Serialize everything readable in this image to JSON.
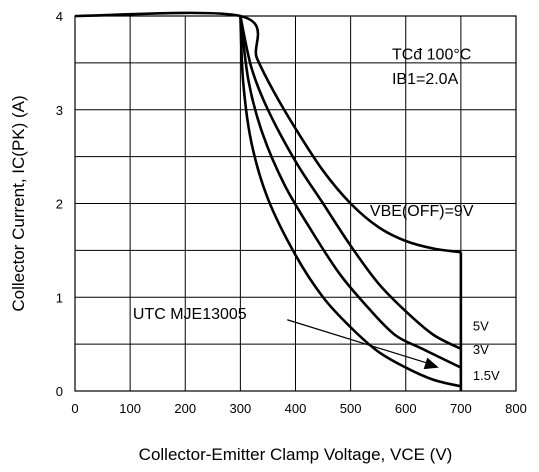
{
  "chart_data": {
    "type": "line",
    "title": "",
    "xlabel": "Collector-Emitter Clamp Voltage, VCE (V)",
    "ylabel": "Collector Current, IC(PK) (A)",
    "xlim": [
      0,
      800
    ],
    "ylim": [
      0,
      4
    ],
    "x_ticks": [
      0,
      100,
      200,
      300,
      400,
      500,
      600,
      700,
      800
    ],
    "y_ticks": [
      0,
      1,
      2,
      3,
      4
    ],
    "grid": true,
    "conditions": {
      "tc": "TCđ 100°C",
      "ib1": "IB1=2.0A"
    },
    "part_label": "UTC MJE13005",
    "series": [
      {
        "name": "VBE(OFF)=9V",
        "x": [
          0,
          300,
          330,
          360,
          400,
          450,
          500,
          550,
          600,
          650,
          700
        ],
        "y": [
          4,
          4,
          3.55,
          3.2,
          2.8,
          2.35,
          2.0,
          1.75,
          1.6,
          1.52,
          1.48
        ]
      },
      {
        "name": "5V",
        "x": [
          300,
          320,
          350,
          400,
          450,
          500,
          550,
          600,
          650,
          700
        ],
        "y": [
          4,
          3.45,
          3.0,
          2.45,
          2.0,
          1.55,
          1.15,
          0.85,
          0.6,
          0.45
        ]
      },
      {
        "name": "3V",
        "x": [
          300,
          315,
          340,
          380,
          430,
          480,
          530,
          580,
          630,
          700
        ],
        "y": [
          4,
          3.3,
          2.75,
          2.2,
          1.7,
          1.25,
          0.9,
          0.6,
          0.45,
          0.25
        ]
      },
      {
        "name": "1.5V",
        "x": [
          300,
          305,
          320,
          350,
          400,
          450,
          500,
          550,
          600,
          650,
          700
        ],
        "y": [
          4,
          3.3,
          2.65,
          2.05,
          1.45,
          1.0,
          0.68,
          0.42,
          0.25,
          0.12,
          0.05
        ]
      }
    ]
  }
}
